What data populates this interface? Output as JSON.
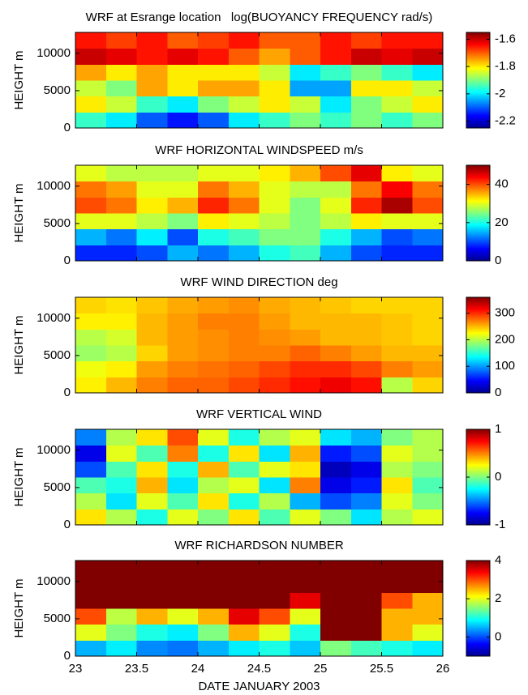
{
  "chart_data": [
    {
      "type": "heatmap",
      "title": "WRF at Esrange location   log(BUOYANCY FREQUENCY rad/s)",
      "ylabel": "HEIGHT m",
      "colormap": "jet",
      "xlim": [
        23,
        26
      ],
      "xticks": [
        23,
        23.5,
        24,
        24.5,
        25,
        25.5,
        26
      ],
      "ylim": [
        0,
        12800
      ],
      "yticks": [
        0,
        5000,
        10000
      ],
      "clim": [
        -2.25,
        -1.55
      ],
      "cticks": [
        -2.2,
        -2,
        -1.8,
        -1.6
      ],
      "x": [
        23.125,
        23.375,
        23.625,
        23.875,
        24.125,
        24.375,
        24.625,
        24.875,
        25.125,
        25.375,
        25.625,
        25.875
      ],
      "y": [
        1067,
        3200,
        5333,
        7467,
        9600,
        11733
      ],
      "z": [
        [
          -1.95,
          -2.0,
          -2.1,
          -2.15,
          -2.1,
          -2.0,
          -1.95,
          -1.9,
          -1.95,
          -1.9,
          -1.95,
          -1.9
        ],
        [
          -1.8,
          -1.85,
          -1.95,
          -2.0,
          -1.9,
          -1.85,
          -1.8,
          -1.85,
          -2.0,
          -1.9,
          -1.85,
          -1.8
        ],
        [
          -1.85,
          -1.9,
          -1.75,
          -1.8,
          -1.75,
          -1.75,
          -1.8,
          -2.05,
          -2.05,
          -1.8,
          -1.8,
          -1.85
        ],
        [
          -1.75,
          -1.8,
          -1.75,
          -1.8,
          -1.8,
          -1.8,
          -1.85,
          -2.0,
          -1.95,
          -1.9,
          -1.95,
          -2.0
        ],
        [
          -1.6,
          -1.62,
          -1.65,
          -1.62,
          -1.65,
          -1.7,
          -1.75,
          -1.7,
          -1.65,
          -1.6,
          -1.62,
          -1.6
        ],
        [
          -1.65,
          -1.68,
          -1.65,
          -1.7,
          -1.68,
          -1.65,
          -1.7,
          -1.7,
          -1.65,
          -1.68,
          -1.65,
          -1.65
        ]
      ]
    },
    {
      "type": "heatmap",
      "title": "WRF HORIZONTAL WINDSPEED m/s",
      "ylabel": "HEIGHT m",
      "colormap": "jet",
      "xlim": [
        23,
        26
      ],
      "xticks": [
        23,
        23.5,
        24,
        24.5,
        25,
        25.5,
        26
      ],
      "ylim": [
        0,
        12800
      ],
      "yticks": [
        0,
        5000,
        10000
      ],
      "clim": [
        0,
        50
      ],
      "cticks": [
        0,
        20,
        40
      ],
      "x": [
        23.125,
        23.375,
        23.625,
        23.875,
        24.125,
        24.375,
        24.625,
        24.875,
        25.125,
        25.375,
        25.625,
        25.875
      ],
      "y": [
        1067,
        3200,
        5333,
        7467,
        9600,
        11733
      ],
      "z": [
        [
          8,
          8,
          10,
          15,
          12,
          15,
          20,
          22,
          15,
          10,
          8,
          8
        ],
        [
          15,
          12,
          18,
          10,
          20,
          22,
          25,
          25,
          20,
          15,
          10,
          12
        ],
        [
          30,
          30,
          28,
          25,
          32,
          30,
          28,
          25,
          28,
          32,
          30,
          30
        ],
        [
          40,
          38,
          32,
          35,
          42,
          38,
          30,
          25,
          30,
          42,
          48,
          40
        ],
        [
          38,
          36,
          30,
          30,
          38,
          35,
          30,
          28,
          28,
          38,
          44,
          38
        ],
        [
          30,
          28,
          28,
          28,
          30,
          30,
          32,
          35,
          40,
          45,
          32,
          30
        ]
      ]
    },
    {
      "type": "heatmap",
      "title": "WRF WIND DIRECTION deg",
      "ylabel": "HEIGHT m",
      "colormap": "jet",
      "xlim": [
        23,
        26
      ],
      "xticks": [
        23,
        23.5,
        24,
        24.5,
        25,
        25.5,
        26
      ],
      "ylim": [
        0,
        12800
      ],
      "yticks": [
        0,
        5000,
        10000
      ],
      "clim": [
        0,
        360
      ],
      "cticks": [
        0,
        100,
        200,
        300
      ],
      "x": [
        23.125,
        23.375,
        23.625,
        23.875,
        24.125,
        24.375,
        24.625,
        24.875,
        25.125,
        25.375,
        25.625,
        25.875
      ],
      "y": [
        1067,
        3200,
        5333,
        7467,
        9600,
        11733
      ],
      "z": [
        [
          230,
          250,
          270,
          280,
          280,
          290,
          300,
          310,
          320,
          310,
          200,
          240
        ],
        [
          220,
          230,
          260,
          270,
          275,
          280,
          290,
          300,
          300,
          290,
          270,
          260
        ],
        [
          190,
          200,
          240,
          260,
          265,
          270,
          270,
          280,
          270,
          260,
          250,
          250
        ],
        [
          200,
          210,
          250,
          260,
          265,
          270,
          265,
          260,
          250,
          250,
          245,
          240
        ],
        [
          230,
          230,
          250,
          260,
          270,
          270,
          260,
          250,
          250,
          250,
          245,
          240
        ],
        [
          240,
          235,
          245,
          255,
          260,
          265,
          255,
          250,
          245,
          240,
          240,
          240
        ]
      ]
    },
    {
      "type": "heatmap",
      "title": "WRF VERTICAL WIND",
      "ylabel": "HEIGHT m",
      "colormap": "jet",
      "xlim": [
        23,
        26
      ],
      "xticks": [
        23,
        23.5,
        24,
        24.5,
        25,
        25.5,
        26
      ],
      "ylim": [
        0,
        12800
      ],
      "yticks": [
        0,
        5000,
        10000
      ],
      "clim": [
        -1,
        1
      ],
      "cticks": [
        -1,
        0,
        1
      ],
      "x": [
        23.125,
        23.375,
        23.625,
        23.875,
        24.125,
        24.375,
        24.625,
        24.875,
        25.125,
        25.375,
        25.625,
        25.875
      ],
      "y": [
        1067,
        3200,
        5333,
        7467,
        9600,
        11733
      ],
      "z": [
        [
          0.3,
          0.1,
          -0.2,
          0.2,
          0,
          0.3,
          -0.1,
          0.2,
          0,
          -0.3,
          0.1,
          0.2
        ],
        [
          0.1,
          -0.3,
          0.2,
          -0.1,
          0.3,
          -0.2,
          0.1,
          -0.4,
          -0.6,
          -0.5,
          0.2,
          0
        ],
        [
          -0.1,
          -0.2,
          0.4,
          -0.3,
          0.1,
          0.2,
          -0.3,
          0.5,
          -0.8,
          -0.7,
          0.3,
          -0.1
        ],
        [
          -0.6,
          -0.1,
          0.3,
          -0.2,
          0.4,
          -0.1,
          0.2,
          0.3,
          -0.9,
          -0.8,
          0.1,
          0
        ],
        [
          -0.8,
          0.2,
          -0.1,
          0.5,
          -0.2,
          0.3,
          -0.3,
          0.4,
          -0.7,
          -0.6,
          0.2,
          0.1
        ],
        [
          -0.5,
          0.1,
          0.3,
          0.6,
          0.2,
          -0.2,
          0.1,
          0.2,
          -0.3,
          -0.4,
          0,
          0.1
        ]
      ]
    },
    {
      "type": "heatmap",
      "title": "WRF RICHARDSON NUMBER",
      "ylabel": "HEIGHT m",
      "xlabel": "DATE JANUARY 2003",
      "colormap": "jet",
      "xlim": [
        23,
        26
      ],
      "xticks": [
        23,
        23.5,
        24,
        24.5,
        25,
        25.5,
        26
      ],
      "ylim": [
        0,
        12800
      ],
      "yticks": [
        0,
        5000,
        10000
      ],
      "clim": [
        -1,
        4
      ],
      "cticks": [
        0,
        2,
        4
      ],
      "x": [
        23.125,
        23.375,
        23.625,
        23.875,
        24.125,
        24.375,
        24.625,
        24.875,
        25.125,
        25.375,
        25.625,
        25.875
      ],
      "y": [
        1067,
        3200,
        5333,
        7467,
        9600,
        11733
      ],
      "z": [
        [
          0.5,
          0.8,
          0.3,
          0.2,
          0.5,
          0.8,
          1.0,
          0.6,
          1.5,
          1.2,
          1.0,
          0.8
        ],
        [
          2.0,
          1.5,
          1.0,
          0.8,
          1.5,
          2.5,
          2.0,
          1.0,
          4,
          4,
          2.5,
          2.0
        ],
        [
          3,
          1.8,
          2.5,
          2.0,
          2.5,
          3.5,
          3.0,
          2.0,
          4,
          4,
          2.5,
          2.5
        ],
        [
          4,
          4,
          4,
          4,
          4,
          4,
          4,
          3.5,
          4,
          4,
          3.0,
          2.5
        ],
        [
          4,
          4,
          4,
          4,
          4,
          4,
          4,
          4,
          4,
          4,
          4,
          4
        ],
        [
          4,
          4,
          4,
          4,
          4,
          4,
          4,
          4,
          4,
          4,
          4,
          4
        ]
      ]
    }
  ]
}
